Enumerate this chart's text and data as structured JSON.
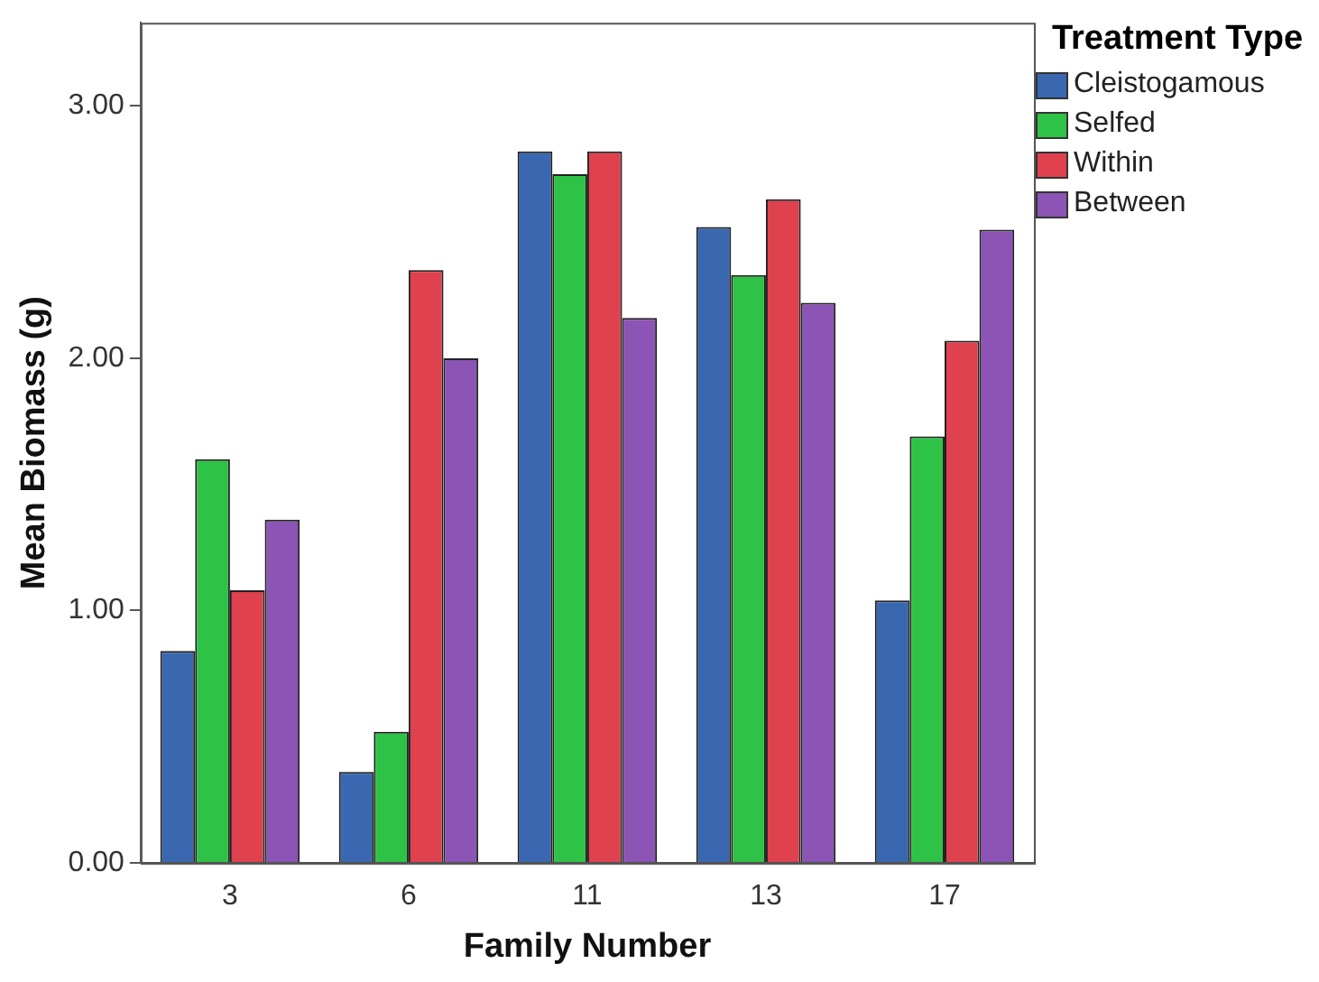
{
  "chart_data": {
    "type": "bar",
    "xlabel": "Family Number",
    "ylabel": "Mean Biomass (g)",
    "legend_title": "Treatment Type",
    "categories": [
      "3",
      "6",
      "11",
      "13",
      "17"
    ],
    "series": [
      {
        "name": "Cleistogamous",
        "color": "#3a68b0",
        "values": [
          0.84,
          0.36,
          2.82,
          2.52,
          1.04
        ]
      },
      {
        "name": "Selfed",
        "color": "#2ec246",
        "values": [
          1.6,
          0.52,
          2.73,
          2.33,
          1.69
        ]
      },
      {
        "name": "Within",
        "color": "#df414e",
        "values": [
          1.08,
          2.35,
          2.82,
          2.63,
          2.07
        ]
      },
      {
        "name": "Between",
        "color": "#8b54b5",
        "values": [
          1.36,
          2.0,
          2.16,
          2.22,
          2.51
        ]
      }
    ],
    "ylim": [
      0,
      3.33
    ],
    "yticks": [
      {
        "value": 0,
        "label": "0.00"
      },
      {
        "value": 1,
        "label": "1.00"
      },
      {
        "value": 2,
        "label": "2.00"
      },
      {
        "value": 3,
        "label": "3.00"
      }
    ],
    "grid": false,
    "legend": "right"
  }
}
